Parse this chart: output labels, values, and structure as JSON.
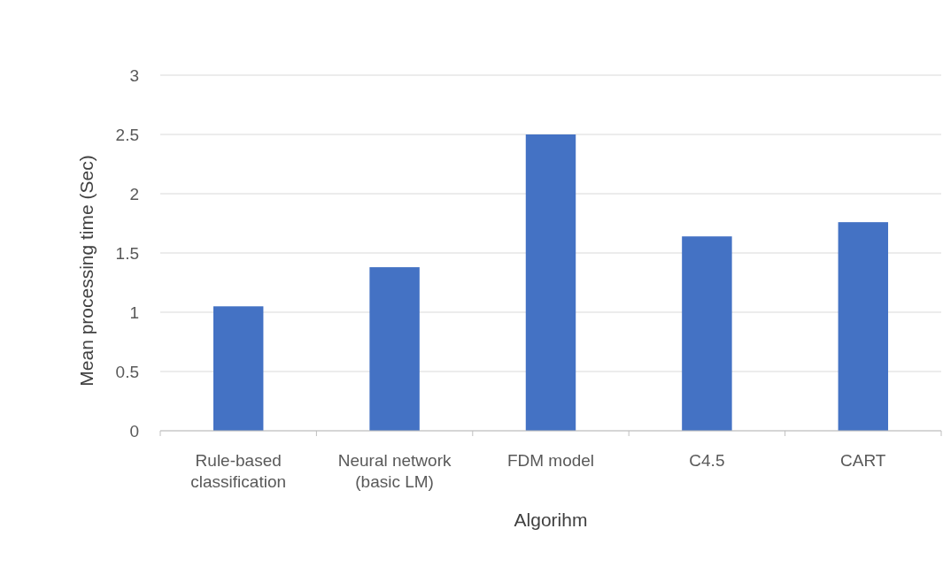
{
  "chart_data": {
    "type": "bar",
    "xlabel": "Algorihm",
    "ylabel": "Mean processing time (Sec)",
    "categories": [
      "Rule-based classification",
      "Neural network (basic LM)",
      "FDM model",
      "C4.5",
      "CART"
    ],
    "values": [
      1.05,
      1.38,
      2.5,
      1.64,
      1.76
    ],
    "color": "#4472c4",
    "ylim": [
      0,
      3
    ],
    "yticks": [
      0,
      0.5,
      1,
      1.5,
      2,
      2.5,
      3
    ],
    "grid": "y"
  }
}
